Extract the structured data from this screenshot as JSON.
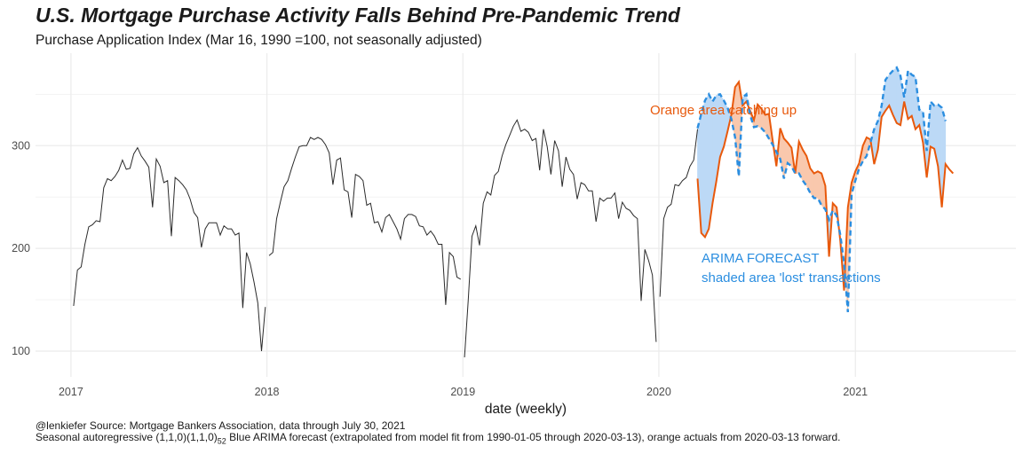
{
  "title": "U.S. Mortgage Purchase Activity Falls Behind Pre-Pandemic Trend",
  "subtitle": "Purchase Application Index (Mar 16, 1990 =100, not seasonally adjusted)",
  "caption": {
    "line1": "@lenkiefer Source: Mortgage Bankers Association, data through July 30, 2021",
    "line2_prefix": "Seasonal autoregressive (1,1,0)(1,1,0)",
    "line2_sub": "52",
    "line2_suffix": " Blue ARIMA forecast (extrapolated from model fit from 1990-01-05 through 2020-03-13), orange actuals from 2020-03-13 forward."
  },
  "colors": {
    "history": "#2b2b2b",
    "actual": "#e8590c",
    "forecast": "#2b8ee0",
    "lost_fill": "#bcd9f6",
    "catchup_fill": "#f9c8ad",
    "grid": "#ebebeb"
  },
  "annotations": {
    "catchup": "Orange area catching up",
    "forecast_title": "ARIMA FORECAST",
    "forecast_sub": "shaded area 'lost' transactions"
  },
  "chart_data": {
    "type": "line",
    "xlabel": "date (weekly)",
    "ylabel": "",
    "x_ticks": [
      "2017",
      "2018",
      "2019",
      "2020",
      "2021"
    ],
    "y_ticks": [
      100,
      200,
      300
    ],
    "xlim": [
      "2016-10-27",
      "2021-10-27"
    ],
    "ylim": [
      75,
      390
    ],
    "grid": true,
    "series": [
      {
        "key": "history",
        "x_start": "2017-01-06",
        "step_days": 7,
        "values": [
          144,
          179,
          182,
          204,
          221,
          223,
          227,
          226,
          259,
          268,
          266,
          270,
          276,
          286,
          277,
          278,
          292,
          298,
          290,
          285,
          279,
          240,
          287,
          280,
          264,
          266,
          212,
          269,
          266,
          262,
          257,
          248,
          235,
          230,
          201,
          219,
          225,
          225,
          225,
          213,
          222,
          219,
          219,
          213,
          215,
          142,
          196,
          185,
          167,
          147,
          100,
          143,
          193,
          196,
          229,
          245,
          260,
          266,
          278,
          289,
          299,
          300,
          300,
          308,
          306,
          308,
          306,
          301,
          293,
          262,
          286,
          288,
          257,
          255,
          230,
          272,
          270,
          266,
          242,
          244,
          225,
          226,
          216,
          230,
          233,
          226,
          219,
          209,
          229,
          233,
          233,
          231,
          222,
          221,
          213,
          217,
          212,
          204,
          204,
          145,
          196,
          192,
          172,
          170,
          94,
          150,
          212,
          222,
          203,
          244,
          255,
          252,
          271,
          275,
          290,
          301,
          310,
          319,
          325,
          314,
          316,
          313,
          305,
          307,
          276,
          316,
          299,
          272,
          305,
          295,
          260,
          289,
          277,
          272,
          248,
          264,
          262,
          256,
          256,
          226,
          249,
          246,
          249,
          249,
          254,
          229,
          245,
          239,
          237,
          232,
          229,
          149,
          199,
          188,
          174,
          109,
          153,
          229,
          240,
          243,
          262,
          261,
          266,
          269,
          280,
          286,
          316
        ]
      },
      {
        "key": "forecast",
        "x_start": "2020-03-13",
        "step_days": 7,
        "values": [
          317,
          331,
          344,
          350,
          343,
          349,
          350,
          344,
          337,
          326,
          308,
          270,
          347,
          350,
          330,
          318,
          319,
          317,
          313,
          307,
          301,
          294,
          287,
          268,
          283,
          280,
          273,
          273,
          266,
          261,
          254,
          249,
          249,
          242,
          238,
          228,
          237,
          232,
          213,
          186,
          138,
          253,
          266,
          278,
          285,
          290,
          303,
          316,
          324,
          339,
          364,
          369,
          373,
          376,
          368,
          347,
          373,
          369,
          367,
          335,
          333,
          295,
          343,
          339,
          340,
          337,
          324
        ]
      },
      {
        "key": "actual",
        "x_start": "2020-03-13",
        "step_days": 7,
        "values": [
          268,
          215,
          211,
          219,
          244,
          265,
          289,
          299,
          314,
          330,
          357,
          362,
          339,
          343,
          334,
          325,
          340,
          336,
          330,
          331,
          305,
          280,
          317,
          307,
          303,
          298,
          273,
          304,
          296,
          290,
          278,
          273,
          275,
          273,
          261,
          192,
          244,
          240,
          207,
          159,
          240,
          264,
          275,
          283,
          300,
          308,
          306,
          282,
          296,
          328,
          334,
          339,
          330,
          322,
          320,
          343,
          326,
          329,
          316,
          320,
          303,
          269,
          299,
          297,
          280,
          240,
          282,
          277,
          273
        ]
      }
    ],
    "fills": [
      {
        "between": [
          "forecast",
          "actual"
        ],
        "meaning": "shaded area 'lost' transactions"
      },
      {
        "between": [
          "actual",
          "forecast"
        ],
        "meaning": "Orange area catching up"
      }
    ]
  }
}
